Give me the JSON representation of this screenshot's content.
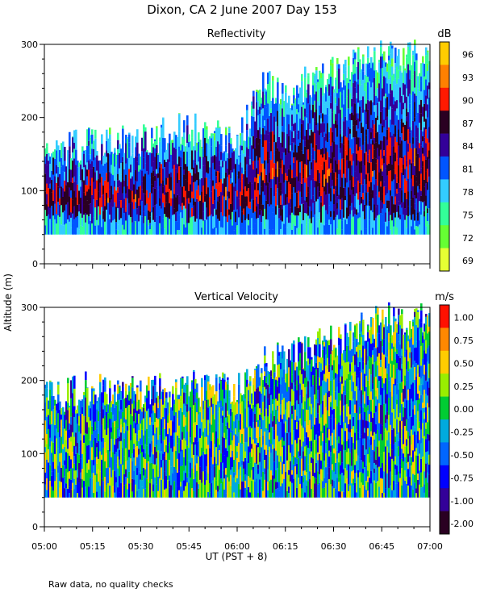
{
  "figure": {
    "title": "Dixon, CA   2 June 2007   Day 153",
    "y_axis_label": "Altitude  (m)",
    "x_axis_label": "UT   (PST + 8)",
    "footnote": "Raw data, no quality checks"
  },
  "chart_data": [
    {
      "type": "heatmap",
      "title": "Reflectivity",
      "x_range": [
        "05:00",
        "07:00"
      ],
      "x_ticks": [
        "05:00",
        "05:15",
        "05:30",
        "05:45",
        "06:00",
        "06:15",
        "06:30",
        "06:45",
        "07:00"
      ],
      "ylim": [
        0,
        300
      ],
      "y_ticks": [
        0,
        100,
        200,
        300
      ],
      "colorbar": {
        "unit": "dB",
        "levels": [
          69,
          72,
          75,
          78,
          81,
          84,
          87,
          90,
          93,
          96
        ],
        "labels": [
          "96",
          "93",
          "90",
          "87",
          "84",
          "81",
          "78",
          "75",
          "72",
          "69"
        ],
        "colors": [
          "#e6ff33",
          "#66ff33",
          "#33ff99",
          "#33ccff",
          "#0055ff",
          "#330099",
          "#2a0022",
          "#ff1a00",
          "#ff8000",
          "#ffcc00"
        ]
      },
      "data_extent": {
        "min_altitude_m": 40,
        "echo_top_m": [
          {
            "time": "05:00",
            "top": 150
          },
          {
            "time": "05:15",
            "top": 165
          },
          {
            "time": "05:30",
            "top": 170
          },
          {
            "time": "05:45",
            "top": 185
          },
          {
            "time": "06:00",
            "top": 170
          },
          {
            "time": "06:08",
            "top": 240
          },
          {
            "time": "06:15",
            "top": 235
          },
          {
            "time": "06:30",
            "top": 260
          },
          {
            "time": "06:45",
            "top": 285
          },
          {
            "time": "07:00",
            "top": 280
          }
        ]
      }
    },
    {
      "type": "heatmap",
      "title": "Vertical Velocity",
      "x_range": [
        "05:00",
        "07:00"
      ],
      "x_ticks": [
        "05:00",
        "05:15",
        "05:30",
        "05:45",
        "06:00",
        "06:15",
        "06:30",
        "06:45",
        "07:00"
      ],
      "ylim": [
        0,
        300
      ],
      "y_ticks": [
        0,
        100,
        200,
        300
      ],
      "colorbar": {
        "unit": "m/s",
        "levels": [
          -2.0,
          -1.0,
          -0.75,
          -0.5,
          -0.25,
          0.0,
          0.25,
          0.5,
          0.75,
          1.0
        ],
        "labels": [
          "1.00",
          "0.75",
          "0.50",
          "0.25",
          "0.00",
          "-0.25",
          "-0.50",
          "-0.75",
          "-1.00",
          "-2.00"
        ],
        "colors": [
          "#2a0022",
          "#330099",
          "#0000ff",
          "#0066ff",
          "#00aadd",
          "#00cc33",
          "#99ee00",
          "#ffcc00",
          "#ff8800",
          "#ff1100"
        ]
      },
      "data_extent": {
        "min_altitude_m": 40,
        "echo_top_m": [
          {
            "time": "05:00",
            "top": 175
          },
          {
            "time": "05:15",
            "top": 190
          },
          {
            "time": "05:30",
            "top": 185
          },
          {
            "time": "05:45",
            "top": 190
          },
          {
            "time": "06:00",
            "top": 185
          },
          {
            "time": "06:08",
            "top": 225
          },
          {
            "time": "06:15",
            "top": 230
          },
          {
            "time": "06:30",
            "top": 255
          },
          {
            "time": "06:45",
            "top": 285
          },
          {
            "time": "07:00",
            "top": 280
          }
        ]
      }
    }
  ]
}
